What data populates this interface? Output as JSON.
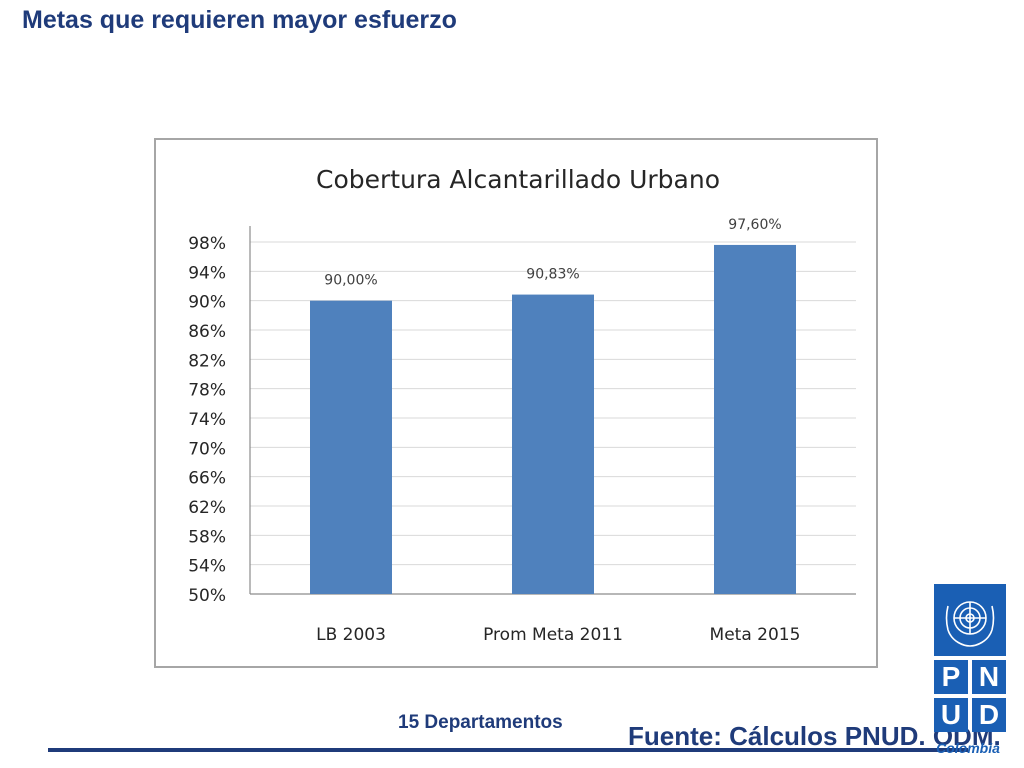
{
  "slide": {
    "title": "Metas que requieren mayor esfuerzo",
    "footer_note": "15 Departamentos",
    "source": "Fuente: Cálculos PNUD. ODM."
  },
  "logo": {
    "letters": [
      "P",
      "N",
      "U",
      "D"
    ],
    "country": "Colombia",
    "emblem_icon": "un-emblem-icon",
    "color": "#1a5fb4"
  },
  "chart_data": {
    "type": "bar",
    "title": "Cobertura Alcantarillado Urbano",
    "xlabel": "",
    "ylabel": "",
    "categories": [
      "LB 2003",
      "Prom Meta 2011",
      "Meta 2015"
    ],
    "values": [
      90.0,
      90.83,
      97.6
    ],
    "data_labels": [
      "90,00%",
      "90,83%",
      "97,60%"
    ],
    "ylim": [
      50,
      98
    ],
    "yticks": [
      50,
      54,
      58,
      62,
      66,
      70,
      74,
      78,
      82,
      86,
      90,
      94,
      98
    ],
    "ytick_labels": [
      "50%",
      "54%",
      "58%",
      "62%",
      "66%",
      "70%",
      "74%",
      "78%",
      "82%",
      "86%",
      "90%",
      "94%",
      "98%"
    ],
    "grid": true,
    "legend": "none",
    "bar_color": "#4f81bd"
  }
}
